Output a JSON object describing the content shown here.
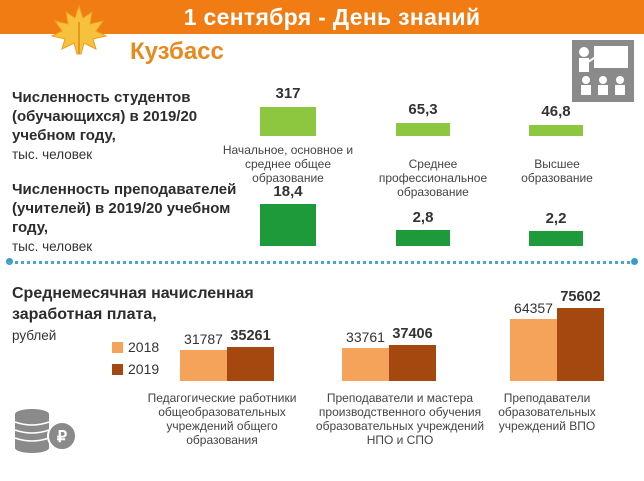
{
  "header": {
    "title": "1 сентября - День знаний"
  },
  "region": "Кузбасс",
  "students": {
    "title": "Численность студентов (обучающихся) в 2019/20 учебном году,",
    "unit": "тыс. человек"
  },
  "teachers": {
    "title": "Численность преподавателей (учителей) в 2019/20 учебном году,",
    "unit": "тыс. человек"
  },
  "salary": {
    "title": "Среднемесячная начисленная заработная плата,",
    "unit": "рублей"
  },
  "chart_data": [
    {
      "type": "bar",
      "categories": [
        "Начальное, основное и среднее общее образование",
        "Среднее профессиональное образование",
        "Высшее образование"
      ],
      "series": [
        {
          "values": [
            317,
            65.3,
            46.8
          ],
          "labels": [
            "317",
            "65,3",
            "46,8"
          ]
        },
        {
          "values": [
            18.4,
            2.8,
            2.2
          ],
          "labels": [
            "18,4",
            "2,8",
            "2,2"
          ]
        }
      ]
    },
    {
      "type": "bar",
      "categories": [
        "Педагогические работники общеобразовательных учреждений общего образования",
        "Преподаватели и мастера производственного обучения образовательных учреждений НПО и СПО",
        "Преподаватели образовательных учреждений ВПО"
      ],
      "series": [
        {
          "name": "2018",
          "values": [
            31787,
            33761,
            64357
          ]
        },
        {
          "name": "2019",
          "values": [
            35261,
            37406,
            75602
          ]
        }
      ],
      "colors": [
        "#f5a35a",
        "#a5480f"
      ]
    }
  ]
}
